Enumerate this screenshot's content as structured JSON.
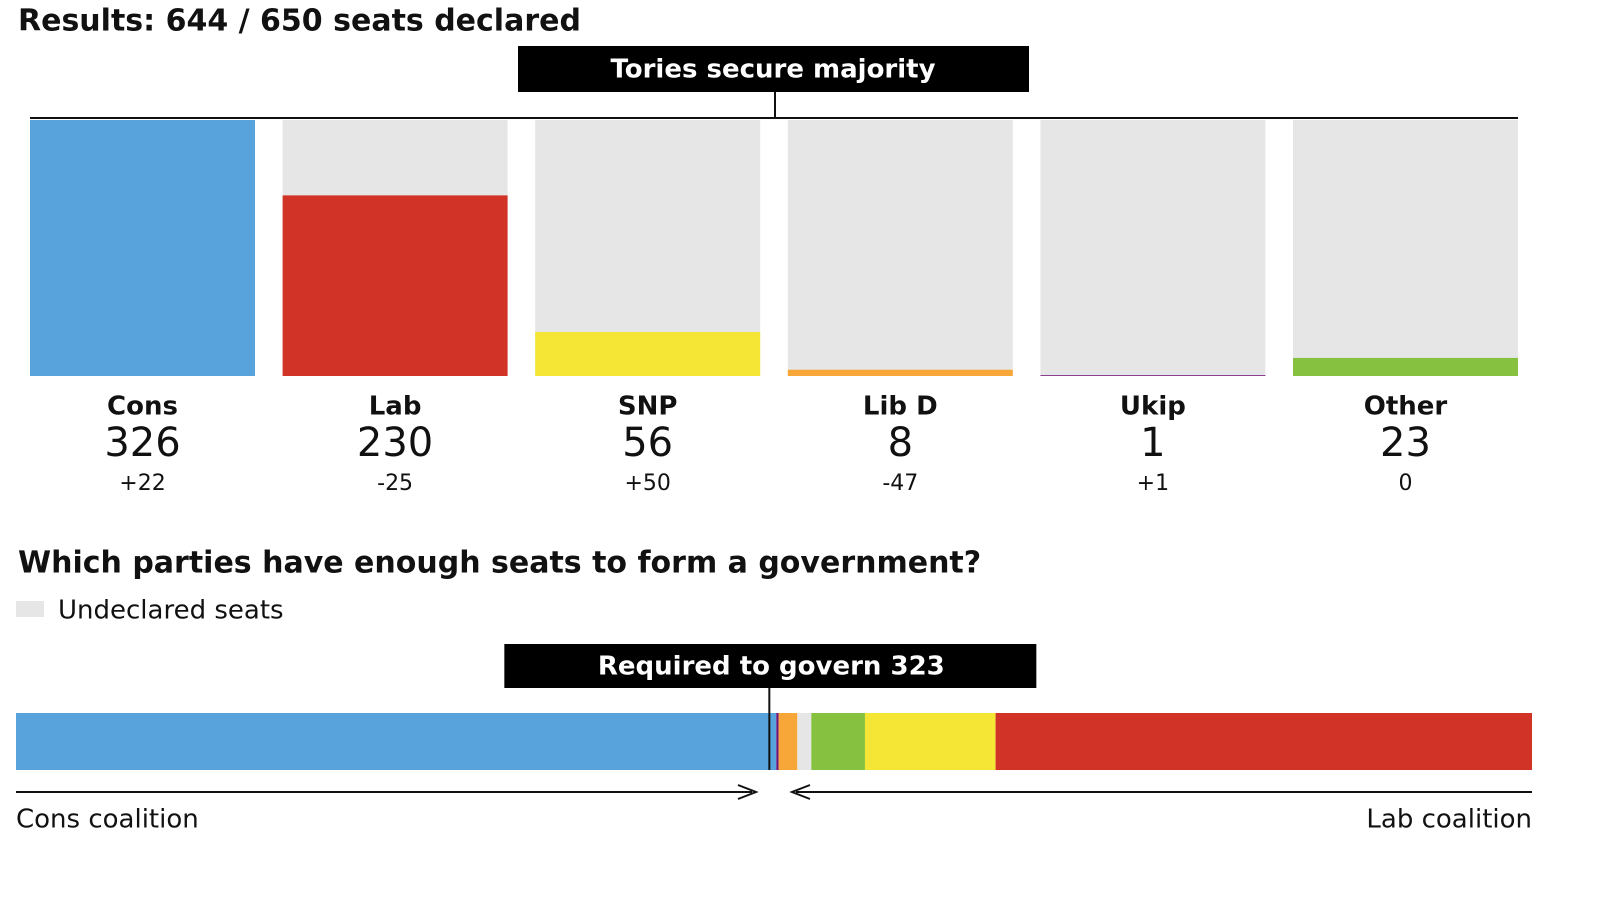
{
  "chart_data": [
    {
      "type": "bar",
      "title": "Results: 644 / 650 seats declared",
      "annotation": "Tories secure majority",
      "categories": [
        "Cons",
        "Lab",
        "SNP",
        "Lib D",
        "Ukip",
        "Other"
      ],
      "values": [
        326,
        230,
        56,
        8,
        1,
        23
      ],
      "changes": [
        "+22",
        "-25",
        "+50",
        "-47",
        "+1",
        "0"
      ],
      "colors": [
        "#58a3db",
        "#d13327",
        "#f5e534",
        "#f6a738",
        "#70147a",
        "#86c240"
      ],
      "background_color": "#e6e6e6",
      "ylim": [
        0,
        326
      ]
    },
    {
      "type": "stacked_bar",
      "title": "Which parties have enough seats to form a government?",
      "legend_label": "Undeclared seats",
      "legend_color": "#e6e6e6",
      "values": [
        326,
        1,
        8,
        6,
        23,
        56,
        230
      ],
      "colors": [
        "#58a3db",
        "#70147a",
        "#f6a738",
        "#e6e6e6",
        "#86c240",
        "#f5e534",
        "#d13327"
      ],
      "xlim": [
        0,
        650
      ],
      "threshold": {
        "value": 323,
        "label": "Required to govern 323"
      },
      "left_label": "Cons coalition",
      "right_label": "Lab coalition"
    }
  ]
}
